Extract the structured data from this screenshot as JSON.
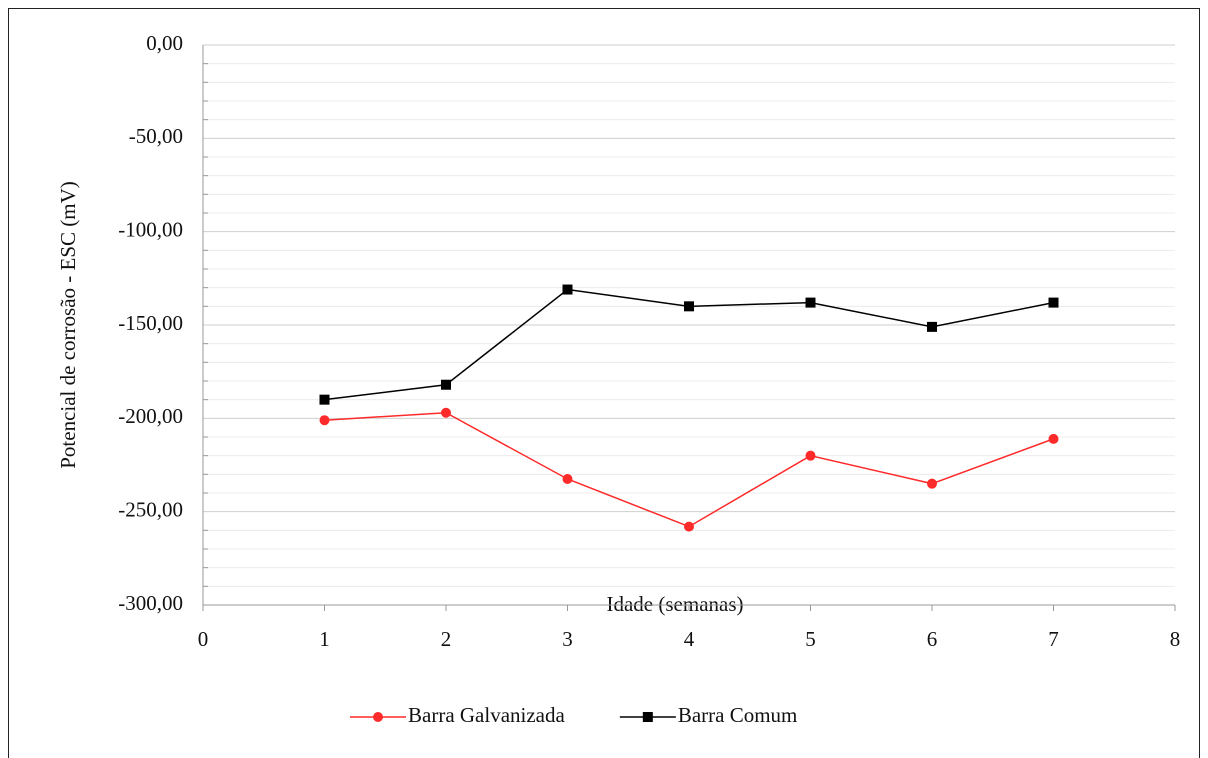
{
  "chart_data": {
    "type": "line",
    "x_label": "Idade (semanas)",
    "y_label": "Potencial de corrosão - ESC (mV)",
    "xlim": [
      0,
      8
    ],
    "xticks": [
      0,
      1,
      2,
      3,
      4,
      5,
      6,
      7,
      8
    ],
    "ylim": [
      -300,
      0
    ],
    "yticks": [
      {
        "value": 0,
        "label": "0,00"
      },
      {
        "value": -50,
        "label": "-50,00"
      },
      {
        "value": -100,
        "label": "-100,00"
      },
      {
        "value": -150,
        "label": "-150,00"
      },
      {
        "value": -200,
        "label": "-200,00"
      },
      {
        "value": -250,
        "label": "-250,00"
      },
      {
        "value": -300,
        "label": "-300,00"
      }
    ],
    "minor_yticks": [
      -10,
      -20,
      -30,
      -40,
      -60,
      -70,
      -80,
      -90,
      -110,
      -120,
      -130,
      -140,
      -160,
      -170,
      -180,
      -190,
      -210,
      -220,
      -230,
      -240,
      -260,
      -270,
      -280,
      -290
    ],
    "grid": true,
    "legend": "bottom",
    "series": [
      {
        "name": "Barra Galvanizada",
        "color": "#ff2a2a",
        "marker": "circle",
        "x": [
          1,
          2,
          3,
          4,
          5,
          6,
          7
        ],
        "values": [
          -201,
          -197,
          -232.5,
          -258,
          -220,
          -235,
          -211
        ]
      },
      {
        "name": "Barra Comum",
        "color": "#000000",
        "marker": "square",
        "x": [
          1,
          2,
          3,
          4,
          5,
          6,
          7
        ],
        "values": [
          -190,
          -182,
          -131,
          -140,
          -138,
          -151,
          -138
        ]
      }
    ]
  }
}
